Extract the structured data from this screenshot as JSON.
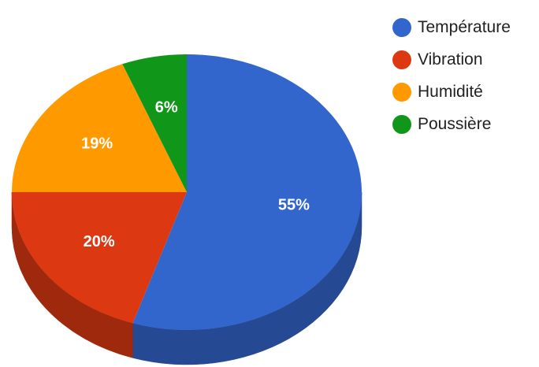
{
  "chart_data": {
    "type": "pie",
    "style": "3d",
    "title": "",
    "categories": [
      "Température",
      "Vibration",
      "Humidité",
      "Poussière"
    ],
    "values": [
      55,
      20,
      19,
      6
    ],
    "labels": [
      "55%",
      "20%",
      "19%",
      "6%"
    ],
    "colors": [
      "#3366cc",
      "#dc3912",
      "#ff9900",
      "#109618"
    ],
    "legend_position": "right"
  },
  "legend": {
    "items": [
      {
        "label": "Température",
        "color": "#3366cc",
        "icon": "circle"
      },
      {
        "label": "Vibration",
        "color": "#dc3912",
        "icon": "circle"
      },
      {
        "label": "Humidité",
        "color": "#ff9900",
        "icon": "circle"
      },
      {
        "label": "Poussière",
        "color": "#109618",
        "icon": "circle"
      }
    ]
  }
}
